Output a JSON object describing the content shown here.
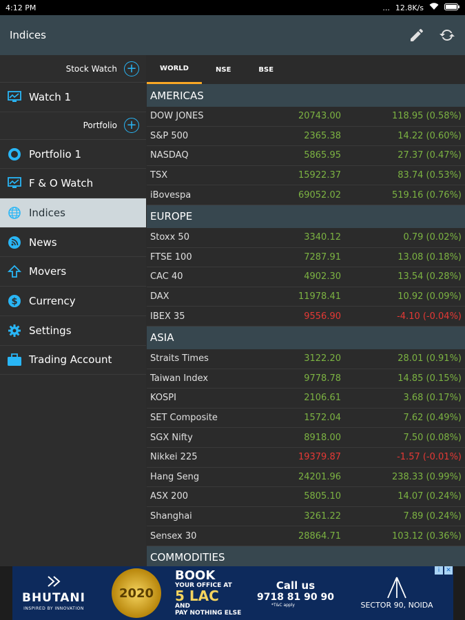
{
  "status": {
    "time": "4:12 PM",
    "dots": "...",
    "speed": "12.8K/s"
  },
  "appbar": {
    "title": "Indices",
    "edit_icon": "pencil-icon",
    "refresh_icon": "refresh-icon"
  },
  "sidebar": {
    "stock_watch_label": "Stock Watch",
    "portfolio_label": "Portfolio",
    "items": [
      {
        "label": "Watch 1",
        "icon": "monitor-chart-icon"
      },
      {
        "label": "Portfolio 1",
        "icon": "ring-icon"
      },
      {
        "label": "F & O Watch",
        "icon": "monitor-chart-icon"
      },
      {
        "label": "Indices",
        "icon": "globe-icon"
      },
      {
        "label": "News",
        "icon": "rss-icon"
      },
      {
        "label": "Movers",
        "icon": "up-arrow-icon"
      },
      {
        "label": "Currency",
        "icon": "dollar-icon"
      },
      {
        "label": "Settings",
        "icon": "gear-icon"
      },
      {
        "label": "Trading Account",
        "icon": "briefcase-icon"
      }
    ]
  },
  "tabs": [
    "WORLD",
    "NSE",
    "BSE"
  ],
  "colors": {
    "up": "#7cb342",
    "down": "#e53935",
    "accent": "#29b6f6",
    "tab_indicator": "#f9a825"
  },
  "sections": [
    {
      "title": "AMERICAS",
      "rows": [
        {
          "name": "DOW JONES",
          "value": "20743.00",
          "change": "118.95 (0.58%)",
          "dir": "up"
        },
        {
          "name": "S&P 500",
          "value": "2365.38",
          "change": "14.22 (0.60%)",
          "dir": "up"
        },
        {
          "name": "NASDAQ",
          "value": "5865.95",
          "change": "27.37 (0.47%)",
          "dir": "up"
        },
        {
          "name": "TSX",
          "value": "15922.37",
          "change": "83.74 (0.53%)",
          "dir": "up"
        },
        {
          "name": "iBovespa",
          "value": "69052.02",
          "change": "519.16 (0.76%)",
          "dir": "up"
        }
      ]
    },
    {
      "title": "EUROPE",
      "rows": [
        {
          "name": "Stoxx 50",
          "value": "3340.12",
          "change": "0.79 (0.02%)",
          "dir": "up"
        },
        {
          "name": "FTSE 100",
          "value": "7287.91",
          "change": "13.08 (0.18%)",
          "dir": "up"
        },
        {
          "name": "CAC 40",
          "value": "4902.30",
          "change": "13.54 (0.28%)",
          "dir": "up"
        },
        {
          "name": "DAX",
          "value": "11978.41",
          "change": "10.92 (0.09%)",
          "dir": "up"
        },
        {
          "name": "IBEX 35",
          "value": "9556.90",
          "change": "-4.10 (-0.04%)",
          "dir": "down"
        }
      ]
    },
    {
      "title": "ASIA",
      "rows": [
        {
          "name": "Straits Times",
          "value": "3122.20",
          "change": "28.01 (0.91%)",
          "dir": "up"
        },
        {
          "name": "Taiwan Index",
          "value": "9778.78",
          "change": "14.85 (0.15%)",
          "dir": "up"
        },
        {
          "name": "KOSPI",
          "value": "2106.61",
          "change": "3.68 (0.17%)",
          "dir": "up"
        },
        {
          "name": "SET Composite",
          "value": "1572.04",
          "change": "7.62 (0.49%)",
          "dir": "up"
        },
        {
          "name": "SGX Nifty",
          "value": "8918.00",
          "change": "7.50 (0.08%)",
          "dir": "up"
        },
        {
          "name": "Nikkei 225",
          "value": "19379.87",
          "change": "-1.57 (-0.01%)",
          "dir": "down"
        },
        {
          "name": "Hang Seng",
          "value": "24201.96",
          "change": "238.33 (0.99%)",
          "dir": "up"
        },
        {
          "name": "ASX 200",
          "value": "5805.10",
          "change": "14.07 (0.24%)",
          "dir": "up"
        },
        {
          "name": "Shanghai",
          "value": "3261.22",
          "change": "7.89 (0.24%)",
          "dir": "up"
        },
        {
          "name": "Sensex 30",
          "value": "28864.71",
          "change": "103.12 (0.36%)",
          "dir": "up"
        }
      ]
    },
    {
      "title": "COMMODITIES",
      "rows": []
    }
  ],
  "ad": {
    "brand": "BHUTANI",
    "brand_sub": "INSPIRED BY INNOVATION",
    "badge": "2020",
    "book": "BOOK",
    "book_sub": "YOUR OFFICE AT",
    "lac": "5 LAC",
    "and": "AND",
    "pay": "PAY NOTHING ELSE",
    "call_label": "Call us",
    "phone": "9718 81 90 90",
    "tc": "*T&C apply",
    "sector": "SECTOR 90, NOIDA"
  }
}
